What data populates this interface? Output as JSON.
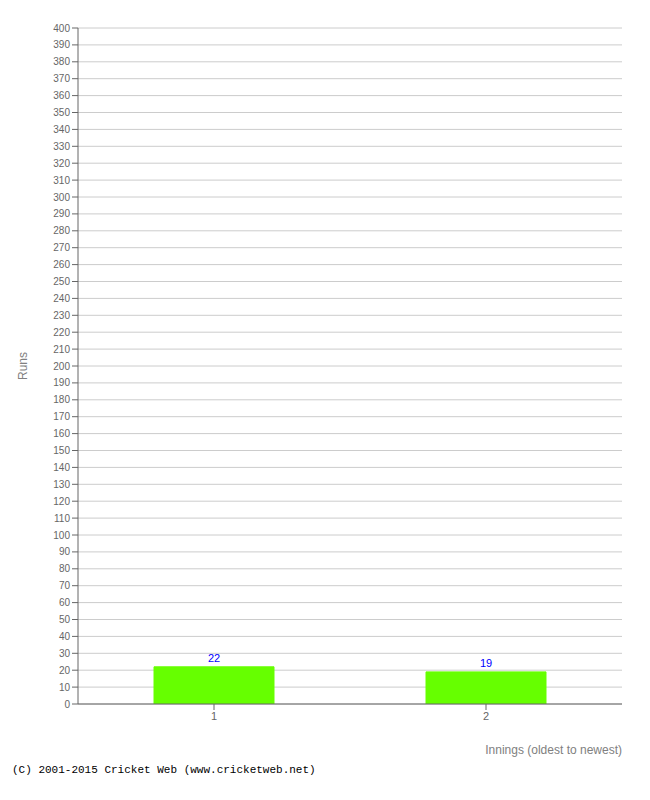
{
  "chart_data": {
    "type": "bar",
    "xlabel": "Innings (oldest to newest)",
    "ylabel": "Runs",
    "categories": [
      "1",
      "2"
    ],
    "values": [
      22,
      19
    ],
    "color": "#66ff00",
    "ylim": [
      0,
      400
    ],
    "yticks": [
      0,
      10,
      20,
      30,
      40,
      50,
      60,
      70,
      80,
      90,
      100,
      110,
      120,
      130,
      140,
      150,
      160,
      170,
      180,
      190,
      200,
      210,
      220,
      230,
      240,
      250,
      260,
      270,
      280,
      290,
      300,
      310,
      320,
      330,
      340,
      350,
      360,
      370,
      380,
      390,
      400
    ],
    "grid": true,
    "data_labels": true,
    "annotations": [
      "(C) 2001-2015 Cricket Web (www.cricketweb.net)"
    ]
  }
}
